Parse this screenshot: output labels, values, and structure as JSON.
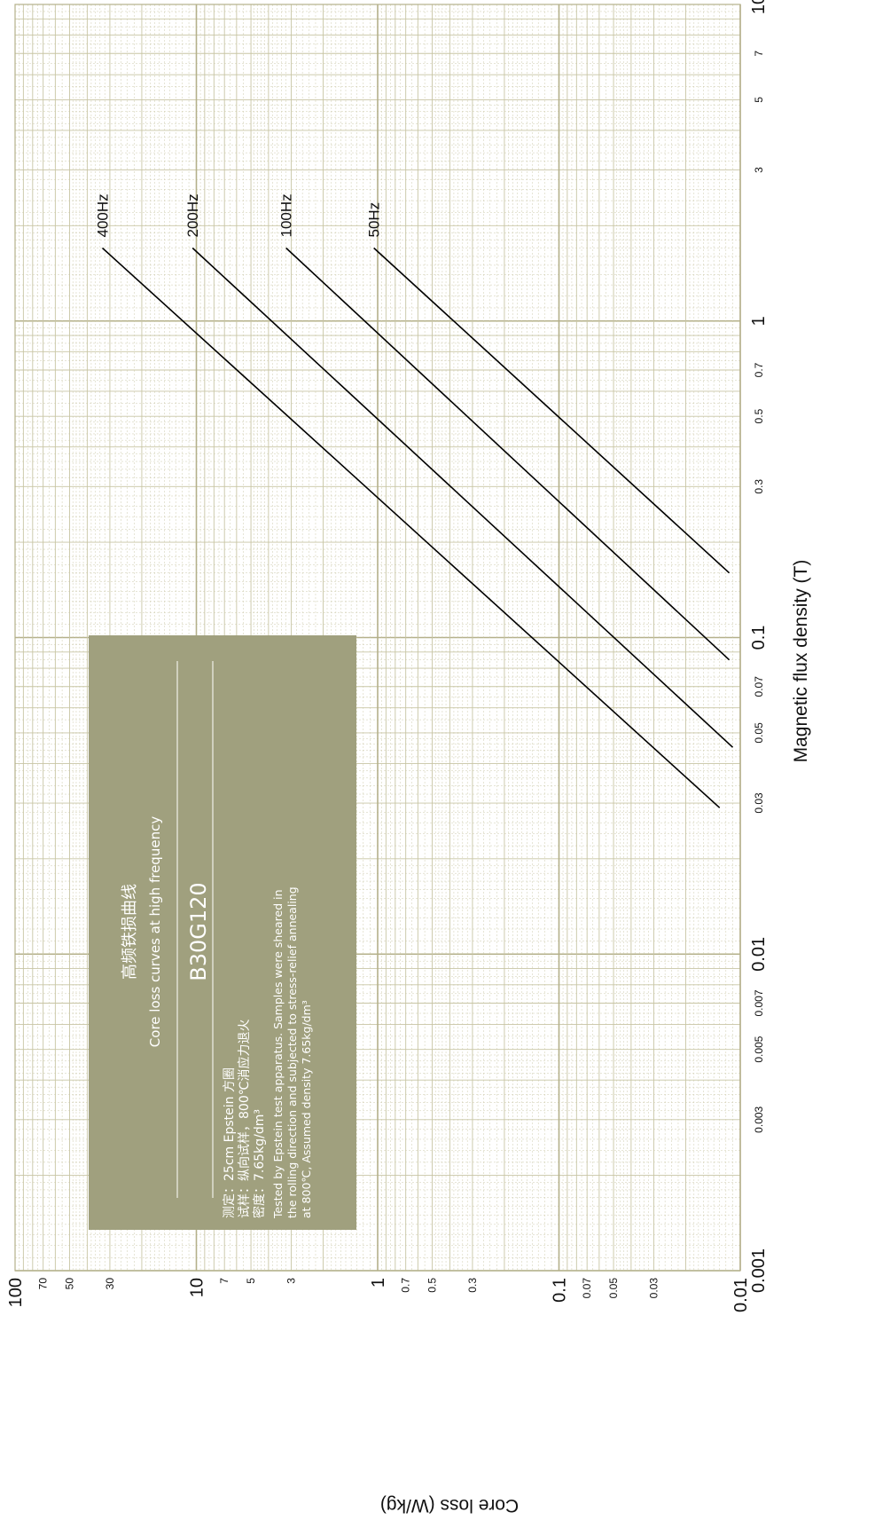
{
  "chart_data": {
    "type": "line",
    "x_axis": {
      "label": "Magnetic flux density (T)",
      "scale": "log",
      "range": [
        0.001,
        10
      ],
      "ticks": [
        {
          "value": 0.001,
          "label": "0.001",
          "major": true
        },
        {
          "value": 0.003,
          "label": "0.003",
          "major": false
        },
        {
          "value": 0.005,
          "label": "0.005",
          "major": false
        },
        {
          "value": 0.007,
          "label": "0.007",
          "major": false
        },
        {
          "value": 0.01,
          "label": "0.01",
          "major": true
        },
        {
          "value": 0.03,
          "label": "0.03",
          "major": false
        },
        {
          "value": 0.05,
          "label": "0.05",
          "major": false
        },
        {
          "value": 0.07,
          "label": "0.07",
          "major": false
        },
        {
          "value": 0.1,
          "label": "0.1",
          "major": true
        },
        {
          "value": 0.3,
          "label": "0.3",
          "major": false
        },
        {
          "value": 0.5,
          "label": "0.5",
          "major": false
        },
        {
          "value": 0.7,
          "label": "0.7",
          "major": false
        },
        {
          "value": 1,
          "label": "1",
          "major": true
        },
        {
          "value": 3,
          "label": "3",
          "major": false
        },
        {
          "value": 5,
          "label": "5",
          "major": false
        },
        {
          "value": 7,
          "label": "7",
          "major": false
        },
        {
          "value": 10,
          "label": "10",
          "major": true
        }
      ]
    },
    "y_axis": {
      "label": "Core loss (W/kg)",
      "scale": "log",
      "range": [
        0.01,
        100
      ],
      "ticks": [
        {
          "value": 0.01,
          "label": "0.01",
          "major": true
        },
        {
          "value": 0.03,
          "label": "0.03",
          "major": false
        },
        {
          "value": 0.05,
          "label": "0.05",
          "major": false
        },
        {
          "value": 0.07,
          "label": "0.07",
          "major": false
        },
        {
          "value": 0.1,
          "label": "0.1",
          "major": true
        },
        {
          "value": 0.3,
          "label": "0.3",
          "major": false
        },
        {
          "value": 0.5,
          "label": "0.5",
          "major": false
        },
        {
          "value": 0.7,
          "label": "0.7",
          "major": false
        },
        {
          "value": 1,
          "label": "1",
          "major": true
        },
        {
          "value": 3,
          "label": "3",
          "major": false
        },
        {
          "value": 5,
          "label": "5",
          "major": false
        },
        {
          "value": 7,
          "label": "7",
          "major": false
        },
        {
          "value": 10,
          "label": "10",
          "major": true
        },
        {
          "value": 30,
          "label": "30",
          "major": false
        },
        {
          "value": 50,
          "label": "50",
          "major": false
        },
        {
          "value": 70,
          "label": "70",
          "major": false
        },
        {
          "value": 100,
          "label": "100",
          "major": true
        }
      ]
    },
    "grid": true,
    "series": [
      {
        "name": "400Hz",
        "color": "#000000",
        "points": [
          [
            0.029,
            0.013
          ],
          [
            1.7,
            33
          ]
        ]
      },
      {
        "name": "200Hz",
        "color": "#000000",
        "points": [
          [
            0.045,
            0.011
          ],
          [
            1.7,
            10.5
          ]
        ]
      },
      {
        "name": "100Hz",
        "color": "#000000",
        "points": [
          [
            0.085,
            0.0115
          ],
          [
            1.7,
            3.2
          ]
        ]
      },
      {
        "name": "50Hz",
        "color": "#000000",
        "points": [
          [
            0.16,
            0.0115
          ],
          [
            1.7,
            1.05
          ]
        ]
      }
    ],
    "info_box": {
      "title_cn": "高频铁损曲线",
      "title_en": "Core loss curves at high frequency",
      "grade": "B30G120",
      "notes_cn": [
        "测定：25cm Epstein 方圈",
        "试样：纵向试样，800℃消应力退火",
        "密度：7.65kg/dm³"
      ],
      "notes_en": [
        "Tested by Epstein test apparatus. Samples were sheared in",
        "the rolling direction and subjected to stress-relief annealing",
        "at 800℃, Assumed density 7.65kg/dm³"
      ]
    }
  },
  "colors": {
    "grid": "#c8c5a4",
    "grid_major": "#b4b08a",
    "info_box_bg": "#a0a07e",
    "curve": "#000000"
  }
}
